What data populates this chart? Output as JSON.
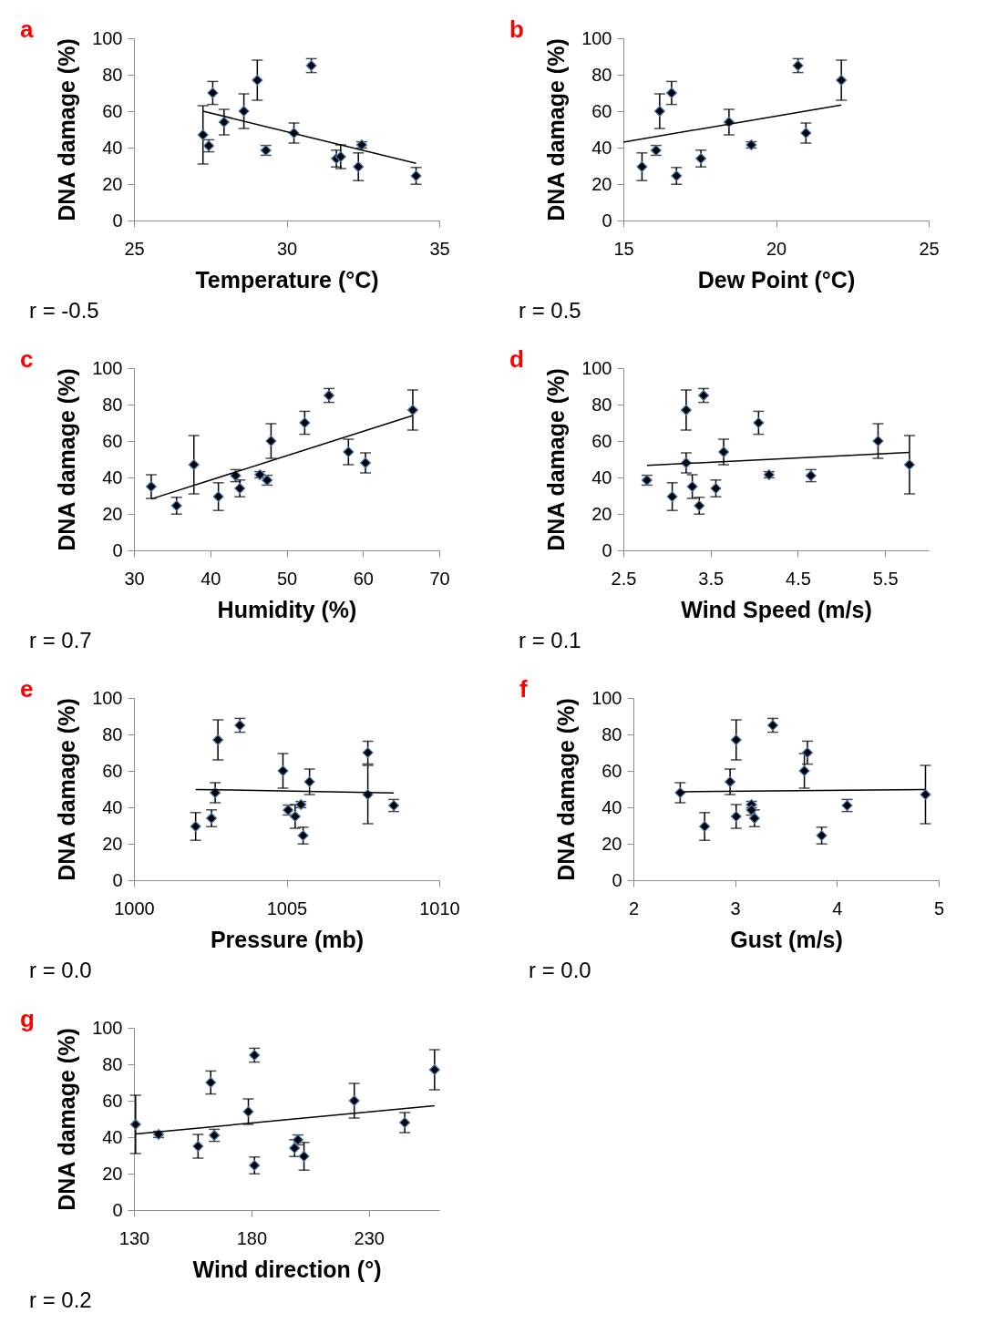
{
  "chart_data": [
    {
      "type": "scatter",
      "title": "a",
      "xlabel": "Temperature (°C)",
      "ylabel": "DNA damage (%)",
      "xlim": [
        25,
        35
      ],
      "xticks": [
        25,
        30,
        35
      ],
      "ylim": [
        0,
        100
      ],
      "yticks": [
        0,
        20,
        40,
        60,
        80,
        100
      ],
      "marker": "diamond",
      "annotations": [
        "r = -0.5"
      ],
      "series": [
        {
          "type": "scatter",
          "color": "#000000",
          "x": [
            27.26,
            27.45,
            27.58,
            27.95,
            28.6,
            29.04,
            29.32,
            30.24,
            30.81,
            31.63,
            31.77,
            32.35,
            32.46,
            34.24
          ],
          "values": [
            47,
            41,
            70,
            54,
            60,
            77,
            38.5,
            48,
            85,
            34,
            35,
            29.5,
            41.5,
            24.5
          ],
          "errors": [
            16,
            3.3,
            6.3,
            7,
            9.5,
            11,
            2.7,
            5.5,
            3.8,
            4.6,
            6.5,
            7.6,
            1.7,
            4.6
          ]
        },
        {
          "type": "line",
          "marker": "none",
          "color": "#000000",
          "x": [
            27.26,
            34.24
          ],
          "values": [
            60,
            31.4
          ]
        }
      ]
    },
    {
      "type": "scatter",
      "title": "b",
      "xlabel": "Dew Point (°C)",
      "ylabel": "DNA damage (%)",
      "xlim": [
        15,
        25
      ],
      "xticks": [
        15,
        20,
        25
      ],
      "ylim": [
        0,
        100
      ],
      "yticks": [
        0,
        20,
        40,
        60,
        80,
        100
      ],
      "marker": "diamond",
      "annotations": [
        "r = 0.5"
      ],
      "series": [
        {
          "type": "scatter",
          "color": "#000000",
          "x": [
            15.61,
            16.07,
            16.19,
            16.58,
            16.74,
            17.54,
            18.46,
            19.19,
            20.72,
            20.98,
            22.14
          ],
          "values": [
            29.5,
            38.5,
            60,
            70,
            24.5,
            34,
            54,
            41.5,
            85,
            48,
            77
          ],
          "errors": [
            7.6,
            2.7,
            9.5,
            6.3,
            4.6,
            4.6,
            7,
            1.7,
            3.8,
            5.5,
            11
          ]
        },
        {
          "type": "line",
          "marker": "none",
          "color": "#000000",
          "x": [
            15,
            22.14
          ],
          "values": [
            43,
            63.4
          ]
        }
      ]
    },
    {
      "type": "scatter",
      "title": "c",
      "xlabel": "Humidity (%)",
      "ylabel": "DNA damage (%)",
      "xlim": [
        30,
        70
      ],
      "xticks": [
        30,
        40,
        50,
        60,
        70
      ],
      "ylim": [
        0,
        100
      ],
      "yticks": [
        0,
        20,
        40,
        60,
        80,
        100
      ],
      "marker": "diamond",
      "annotations": [
        "r = 0.7"
      ],
      "series": [
        {
          "type": "scatter",
          "color": "#000000",
          "x": [
            32.26,
            35.58,
            37.85,
            41.06,
            43.32,
            43.87,
            46.5,
            47.45,
            47.96,
            52.37,
            55.55,
            58.1,
            60.33,
            66.53
          ],
          "values": [
            35,
            24.5,
            47,
            29.5,
            41,
            34,
            41.5,
            38.5,
            60,
            70,
            85,
            54,
            48,
            77
          ],
          "errors": [
            6.5,
            4.6,
            16,
            7.6,
            3.3,
            4.6,
            1.7,
            2.7,
            9.5,
            6.3,
            3.8,
            7,
            5.5,
            11
          ]
        },
        {
          "type": "line",
          "marker": "none",
          "color": "#000000",
          "x": [
            32.26,
            66.53
          ],
          "values": [
            28.2,
            74
          ]
        }
      ]
    },
    {
      "type": "scatter",
      "title": "d",
      "xlabel": "Wind Speed (m/s)",
      "ylabel": "DNA damage (%)",
      "xlim": [
        2.5,
        6.0
      ],
      "xticks": [
        2.5,
        3.5,
        4.5,
        5.5
      ],
      "ylim": [
        0,
        100
      ],
      "yticks": [
        0,
        20,
        40,
        60,
        80,
        100
      ],
      "marker": "diamond",
      "annotations": [
        "r = 0.1"
      ],
      "series": [
        {
          "type": "scatter",
          "color": "#000000",
          "x": [
            2.77,
            3.06,
            3.22,
            3.22,
            3.29,
            3.37,
            3.42,
            3.56,
            3.65,
            4.05,
            4.17,
            4.65,
            5.42,
            5.78
          ],
          "values": [
            38.5,
            29.5,
            77,
            48,
            35,
            24.5,
            85,
            34,
            54,
            70,
            41.5,
            41,
            60,
            47
          ],
          "errors": [
            2.7,
            7.6,
            11,
            5.5,
            6.5,
            4.6,
            3.8,
            4.6,
            7,
            6.3,
            1.7,
            3.3,
            9.5,
            16
          ]
        },
        {
          "type": "line",
          "marker": "none",
          "color": "#000000",
          "x": [
            2.77,
            5.78
          ],
          "values": [
            46.6,
            53.8
          ]
        }
      ]
    },
    {
      "type": "scatter",
      "title": "e",
      "xlabel": "Pressure (mb)",
      "ylabel": "DNA damage (%)",
      "xlim": [
        1000,
        1010
      ],
      "xticks": [
        1000,
        1005,
        1010
      ],
      "ylim": [
        0,
        100
      ],
      "yticks": [
        0,
        20,
        40,
        60,
        80,
        100
      ],
      "marker": "diamond",
      "annotations": [
        "r = 0.0"
      ],
      "series": [
        {
          "type": "scatter",
          "color": "#000000",
          "x": [
            1002.02,
            1002.54,
            1002.66,
            1002.75,
            1003.47,
            1004.88,
            1005.05,
            1005.28,
            1005.47,
            1005.54,
            1005.75,
            1007.66,
            1007.66,
            1008.51
          ],
          "values": [
            29.5,
            34,
            48,
            77,
            85,
            60,
            38.5,
            35,
            41.5,
            24.5,
            54,
            70,
            47,
            41
          ],
          "errors": [
            7.6,
            4.6,
            5.5,
            11,
            3.8,
            9.5,
            2.7,
            6.5,
            1.7,
            4.6,
            7,
            6.3,
            16,
            3.3
          ]
        },
        {
          "type": "line",
          "marker": "none",
          "color": "#000000",
          "x": [
            1002.02,
            1008.51
          ],
          "values": [
            49.8,
            47.9
          ]
        }
      ]
    },
    {
      "type": "scatter",
      "title": "f",
      "xlabel": "Gust (m/s)",
      "ylabel": "DNA damage (%)",
      "xlim": [
        2,
        5
      ],
      "xticks": [
        2,
        3,
        4,
        5
      ],
      "ylim": [
        0,
        100
      ],
      "yticks": [
        0,
        20,
        40,
        60,
        80,
        100
      ],
      "marker": "diamond",
      "annotations": [
        "r = 0.0"
      ],
      "series": [
        {
          "type": "scatter",
          "color": "#000000",
          "x": [
            2.46,
            2.7,
            2.95,
            3.01,
            3.01,
            3.16,
            3.16,
            3.19,
            3.37,
            3.68,
            3.71,
            3.85,
            4.1,
            4.87
          ],
          "values": [
            48,
            29.5,
            54,
            77,
            35,
            41.5,
            38.5,
            34,
            85,
            60,
            70,
            24.5,
            41,
            47
          ],
          "errors": [
            5.5,
            7.6,
            7,
            11,
            6.5,
            1.7,
            2.7,
            4.6,
            3.8,
            9.5,
            6.3,
            4.6,
            3.3,
            16
          ]
        },
        {
          "type": "line",
          "marker": "none",
          "color": "#000000",
          "x": [
            2.46,
            4.87
          ],
          "values": [
            48.5,
            49.8
          ]
        }
      ]
    },
    {
      "type": "scatter",
      "title": "g",
      "xlabel": "Wind direction (°)",
      "ylabel": "DNA damage (%)",
      "xlim": [
        130,
        260
      ],
      "xticks": [
        130,
        180,
        230
      ],
      "ylim": [
        0,
        100
      ],
      "yticks": [
        0,
        20,
        40,
        60,
        80,
        100
      ],
      "marker": "diamond",
      "annotations": [
        "r = 0.2"
      ],
      "series": [
        {
          "type": "scatter",
          "color": "#000000",
          "x": [
            130.7,
            140.5,
            157.3,
            162.7,
            164.2,
            178.7,
            181.3,
            181.3,
            198.4,
            199.8,
            202.4,
            223.8,
            245.3,
            258.0
          ],
          "values": [
            47,
            41.5,
            35,
            70,
            41,
            54,
            85,
            24.5,
            34,
            38.5,
            29.5,
            60,
            48,
            77
          ],
          "errors": [
            16,
            1.7,
            6.5,
            6.3,
            3.3,
            7,
            3.8,
            4.6,
            4.6,
            2.7,
            7.6,
            9.5,
            5.5,
            11
          ]
        },
        {
          "type": "line",
          "marker": "none",
          "color": "#000000",
          "x": [
            130.7,
            258.0
          ],
          "values": [
            41.7,
            57.3
          ]
        }
      ]
    }
  ]
}
